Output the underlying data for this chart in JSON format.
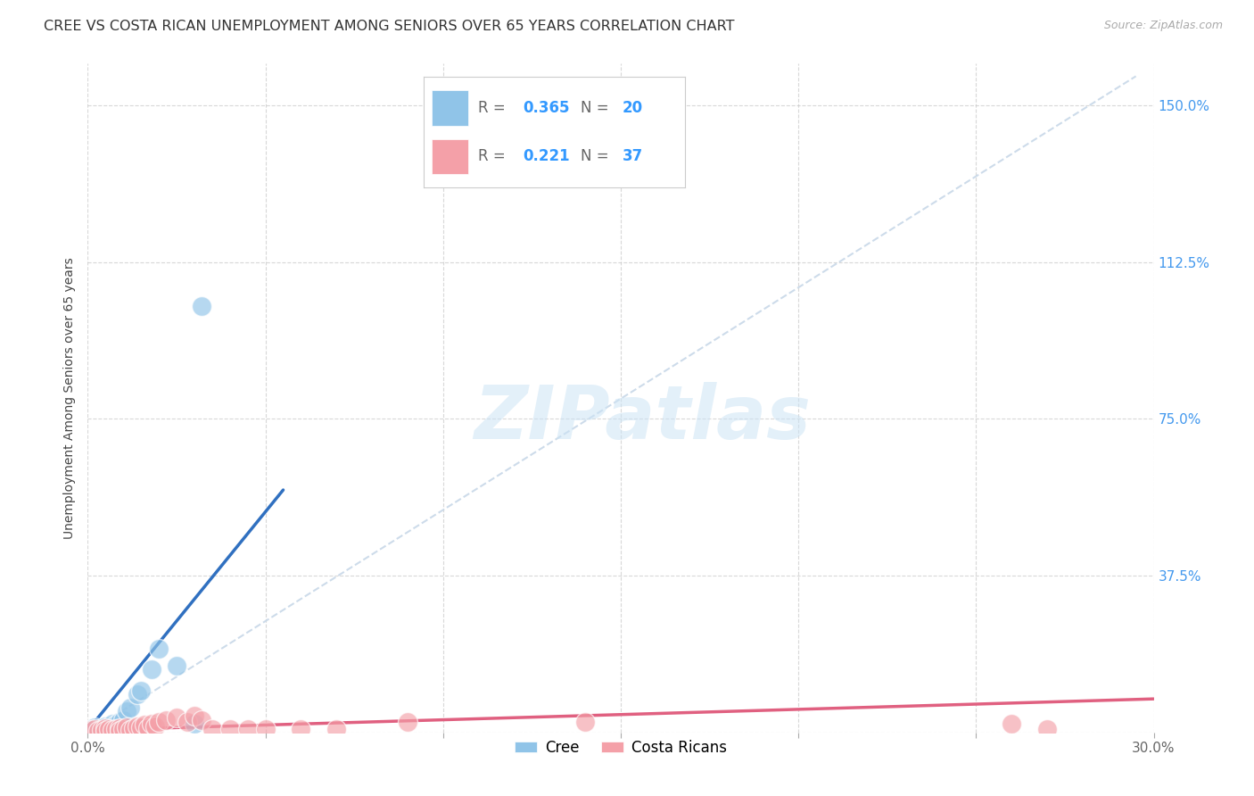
{
  "title": "CREE VS COSTA RICAN UNEMPLOYMENT AMONG SENIORS OVER 65 YEARS CORRELATION CHART",
  "source": "Source: ZipAtlas.com",
  "ylabel": "Unemployment Among Seniors over 65 years",
  "xlim": [
    0.0,
    0.3
  ],
  "ylim": [
    0.0,
    1.6
  ],
  "xticks": [
    0.0,
    0.05,
    0.1,
    0.15,
    0.2,
    0.25,
    0.3
  ],
  "xticklabels": [
    "0.0%",
    "",
    "",
    "",
    "",
    "",
    "30.0%"
  ],
  "yticks": [
    0.0,
    0.375,
    0.75,
    1.125,
    1.5
  ],
  "yticklabels_right": [
    "",
    "37.5%",
    "75.0%",
    "112.5%",
    "150.0%"
  ],
  "cree_R": 0.365,
  "cree_N": 20,
  "costa_R": 0.221,
  "costa_N": 37,
  "cree_color": "#90c4e8",
  "costa_color": "#f4a0a8",
  "cree_line_color": "#3070c0",
  "costa_line_color": "#e06080",
  "diag_color": "#c8d8e8",
  "watermark_color": "#ddeeff",
  "background_color": "#ffffff",
  "cree_scatter_x": [
    0.001,
    0.002,
    0.003,
    0.004,
    0.005,
    0.006,
    0.007,
    0.007,
    0.008,
    0.009,
    0.01,
    0.011,
    0.012,
    0.014,
    0.015,
    0.018,
    0.02,
    0.025,
    0.03,
    0.032
  ],
  "cree_scatter_y": [
    0.008,
    0.012,
    0.006,
    0.01,
    0.015,
    0.005,
    0.008,
    0.02,
    0.018,
    0.025,
    0.03,
    0.05,
    0.06,
    0.09,
    0.1,
    0.15,
    0.2,
    0.16,
    0.02,
    1.02
  ],
  "costa_scatter_x": [
    0.001,
    0.002,
    0.003,
    0.004,
    0.005,
    0.005,
    0.006,
    0.007,
    0.008,
    0.009,
    0.009,
    0.01,
    0.011,
    0.012,
    0.013,
    0.014,
    0.015,
    0.016,
    0.017,
    0.018,
    0.019,
    0.02,
    0.022,
    0.025,
    0.028,
    0.03,
    0.032,
    0.035,
    0.04,
    0.045,
    0.05,
    0.06,
    0.07,
    0.09,
    0.14,
    0.26,
    0.27
  ],
  "costa_scatter_y": [
    0.005,
    0.008,
    0.004,
    0.006,
    0.01,
    0.003,
    0.008,
    0.005,
    0.007,
    0.01,
    0.004,
    0.008,
    0.012,
    0.006,
    0.01,
    0.015,
    0.012,
    0.018,
    0.01,
    0.02,
    0.014,
    0.025,
    0.03,
    0.035,
    0.025,
    0.04,
    0.03,
    0.008,
    0.008,
    0.008,
    0.008,
    0.008,
    0.008,
    0.025,
    0.025,
    0.02,
    0.008
  ],
  "cree_line_x": [
    0.0,
    0.055
  ],
  "cree_line_y": [
    0.005,
    0.58
  ],
  "costa_line_x": [
    0.0,
    0.3
  ],
  "costa_line_y": [
    0.005,
    0.08
  ],
  "diag_line_x": [
    0.0,
    0.295
  ],
  "diag_line_y": [
    0.0,
    1.57
  ],
  "grid_color": "#c8c8c8",
  "title_fontsize": 11.5,
  "label_fontsize": 10,
  "tick_fontsize": 11,
  "source_fontsize": 9
}
